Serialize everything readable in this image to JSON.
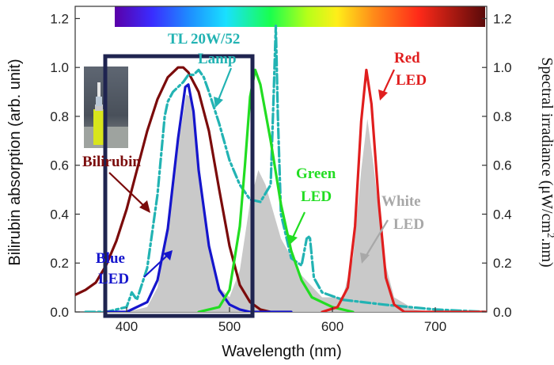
{
  "chart_data": {
    "type": "line",
    "xlabel": "Wavelength (nm)",
    "ylabel_left": "Bilirubin absorption (arb. unit)",
    "ylabel_right_parts": [
      "Spectral irradiance (",
      "μW/cm",
      "2",
      ".nm)"
    ],
    "xlim": [
      350,
      750
    ],
    "ylim": [
      0,
      1.25
    ],
    "x_ticks": [
      400,
      500,
      600,
      700
    ],
    "y_ticks": [
      0.0,
      0.2,
      0.4,
      0.6,
      0.8,
      1.0,
      1.2
    ],
    "y_tick_labels": [
      "0.0",
      "0.2",
      "0.4",
      "0.6",
      "0.8",
      "1.0",
      "1.2"
    ],
    "legend": "none",
    "grid": false,
    "series": [
      {
        "name": "Bilirubin",
        "color": "#7b0b0b",
        "style": "solid",
        "points": [
          [
            350,
            0.07
          ],
          [
            360,
            0.09
          ],
          [
            370,
            0.12
          ],
          [
            380,
            0.19
          ],
          [
            390,
            0.29
          ],
          [
            400,
            0.42
          ],
          [
            410,
            0.58
          ],
          [
            420,
            0.74
          ],
          [
            430,
            0.87
          ],
          [
            440,
            0.96
          ],
          [
            450,
            1.0
          ],
          [
            455,
            1.0
          ],
          [
            460,
            0.98
          ],
          [
            470,
            0.9
          ],
          [
            480,
            0.74
          ],
          [
            490,
            0.5
          ],
          [
            500,
            0.27
          ],
          [
            510,
            0.11
          ],
          [
            520,
            0.04
          ],
          [
            530,
            0.01
          ],
          [
            540,
            0.0
          ]
        ]
      },
      {
        "name": "TL 20W/52 Lamp",
        "color": "#22b3b3",
        "style": "dashdot",
        "points": [
          [
            360,
            0.0
          ],
          [
            380,
            0.0
          ],
          [
            400,
            0.02
          ],
          [
            405,
            0.08
          ],
          [
            410,
            0.05
          ],
          [
            420,
            0.18
          ],
          [
            430,
            0.48
          ],
          [
            437,
            0.8
          ],
          [
            440,
            0.86
          ],
          [
            445,
            0.9
          ],
          [
            450,
            0.92
          ],
          [
            455,
            0.94
          ],
          [
            460,
            0.97
          ],
          [
            465,
            0.97
          ],
          [
            470,
            0.99
          ],
          [
            475,
            0.96
          ],
          [
            480,
            0.9
          ],
          [
            490,
            0.77
          ],
          [
            500,
            0.62
          ],
          [
            510,
            0.52
          ],
          [
            520,
            0.46
          ],
          [
            530,
            0.45
          ],
          [
            540,
            0.52
          ],
          [
            543,
            0.9
          ],
          [
            545,
            1.17
          ],
          [
            547,
            0.8
          ],
          [
            550,
            0.4
          ],
          [
            560,
            0.22
          ],
          [
            570,
            0.19
          ],
          [
            575,
            0.3
          ],
          [
            578,
            0.31
          ],
          [
            582,
            0.14
          ],
          [
            590,
            0.08
          ],
          [
            610,
            0.05
          ],
          [
            650,
            0.03
          ],
          [
            700,
            0.01
          ],
          [
            750,
            0.0
          ]
        ]
      },
      {
        "name": "Blue LED",
        "color": "#1515cc",
        "style": "solid",
        "points": [
          [
            380,
            0.0
          ],
          [
            400,
            0.0
          ],
          [
            420,
            0.04
          ],
          [
            430,
            0.13
          ],
          [
            440,
            0.34
          ],
          [
            450,
            0.71
          ],
          [
            457,
            0.92
          ],
          [
            460,
            0.93
          ],
          [
            465,
            0.82
          ],
          [
            470,
            0.58
          ],
          [
            480,
            0.27
          ],
          [
            490,
            0.09
          ],
          [
            500,
            0.03
          ],
          [
            510,
            0.01
          ],
          [
            520,
            0.0
          ],
          [
            560,
            0.0
          ]
        ]
      },
      {
        "name": "Green LED",
        "color": "#22dd22",
        "style": "solid",
        "points": [
          [
            470,
            0.0
          ],
          [
            490,
            0.02
          ],
          [
            500,
            0.09
          ],
          [
            510,
            0.35
          ],
          [
            515,
            0.6
          ],
          [
            520,
            0.88
          ],
          [
            525,
            0.99
          ],
          [
            530,
            0.93
          ],
          [
            540,
            0.7
          ],
          [
            550,
            0.44
          ],
          [
            560,
            0.25
          ],
          [
            570,
            0.13
          ],
          [
            580,
            0.06
          ],
          [
            600,
            0.02
          ],
          [
            620,
            0.0
          ]
        ]
      },
      {
        "name": "Red LED",
        "color": "#e01e1e",
        "style": "solid",
        "points": [
          [
            590,
            0.0
          ],
          [
            605,
            0.02
          ],
          [
            615,
            0.1
          ],
          [
            622,
            0.35
          ],
          [
            628,
            0.78
          ],
          [
            633,
            0.99
          ],
          [
            638,
            0.85
          ],
          [
            645,
            0.45
          ],
          [
            652,
            0.14
          ],
          [
            660,
            0.03
          ],
          [
            670,
            0.0
          ],
          [
            750,
            0.0
          ]
        ]
      },
      {
        "name": "White LED",
        "color": "#c6c6c6",
        "style": "fill",
        "points": [
          [
            400,
            0.0
          ],
          [
            420,
            0.02
          ],
          [
            430,
            0.1
          ],
          [
            440,
            0.32
          ],
          [
            450,
            0.68
          ],
          [
            458,
            0.89
          ],
          [
            462,
            0.88
          ],
          [
            470,
            0.62
          ],
          [
            480,
            0.28
          ],
          [
            490,
            0.1
          ],
          [
            500,
            0.06
          ],
          [
            510,
            0.17
          ],
          [
            520,
            0.45
          ],
          [
            528,
            0.58
          ],
          [
            535,
            0.52
          ],
          [
            550,
            0.3
          ],
          [
            570,
            0.15
          ],
          [
            590,
            0.06
          ],
          [
            610,
            0.06
          ],
          [
            620,
            0.22
          ],
          [
            628,
            0.58
          ],
          [
            634,
            0.79
          ],
          [
            640,
            0.6
          ],
          [
            650,
            0.22
          ],
          [
            660,
            0.06
          ],
          [
            680,
            0.01
          ],
          [
            700,
            0.0
          ]
        ]
      }
    ],
    "annotations": [
      {
        "text": "TL 20W/52",
        "color": "#22b3b3"
      },
      {
        "text": "Lamp",
        "color": "#22b3b3"
      },
      {
        "text": "Bilirubin",
        "color": "#7b0b0b"
      },
      {
        "text": "Blue",
        "color": "#1515cc"
      },
      {
        "text": "LED",
        "color": "#1515cc"
      },
      {
        "text": "Green",
        "color": "#22dd22"
      },
      {
        "text": "LED",
        "color": "#22dd22"
      },
      {
        "text": "Red",
        "color": "#e01e1e"
      },
      {
        "text": "LED",
        "color": "#e01e1e"
      },
      {
        "text": "White",
        "color": "#a8a8a8"
      },
      {
        "text": "LED",
        "color": "#a8a8a8"
      }
    ],
    "spectrum_bar": "visible color gradient from violet to dark red",
    "highlight_box_color": "#1f2450",
    "inset_photo": "photograph of a vial"
  }
}
